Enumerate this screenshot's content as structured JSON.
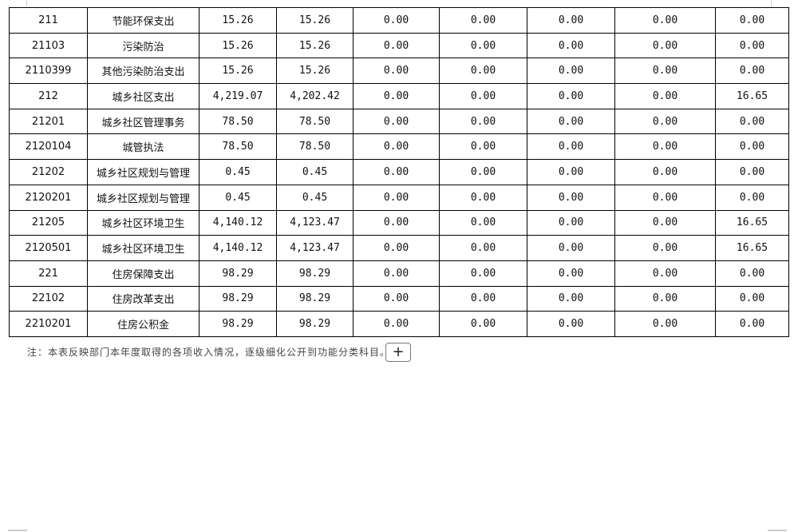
{
  "rows": [
    [
      "211",
      "节能环保支出",
      "15.26",
      "15.26",
      "0.00",
      "0.00",
      "0.00",
      "0.00",
      "0.00"
    ],
    [
      "21103",
      "污染防治",
      "15.26",
      "15.26",
      "0.00",
      "0.00",
      "0.00",
      "0.00",
      "0.00"
    ],
    [
      "2110399",
      "其他污染防治支出",
      "15.26",
      "15.26",
      "0.00",
      "0.00",
      "0.00",
      "0.00",
      "0.00"
    ],
    [
      "212",
      "城乡社区支出",
      "4,219.07",
      "4,202.42",
      "0.00",
      "0.00",
      "0.00",
      "0.00",
      "16.65"
    ],
    [
      "21201",
      "城乡社区管理事务",
      "78.50",
      "78.50",
      "0.00",
      "0.00",
      "0.00",
      "0.00",
      "0.00"
    ],
    [
      "2120104",
      "城管执法",
      "78.50",
      "78.50",
      "0.00",
      "0.00",
      "0.00",
      "0.00",
      "0.00"
    ],
    [
      "21202",
      "城乡社区规划与管理",
      "0.45",
      "0.45",
      "0.00",
      "0.00",
      "0.00",
      "0.00",
      "0.00"
    ],
    [
      "2120201",
      "城乡社区规划与管理",
      "0.45",
      "0.45",
      "0.00",
      "0.00",
      "0.00",
      "0.00",
      "0.00"
    ],
    [
      "21205",
      "城乡社区环境卫生",
      "4,140.12",
      "4,123.47",
      "0.00",
      "0.00",
      "0.00",
      "0.00",
      "16.65"
    ],
    [
      "2120501",
      "城乡社区环境卫生",
      "4,140.12",
      "4,123.47",
      "0.00",
      "0.00",
      "0.00",
      "0.00",
      "16.65"
    ],
    [
      "221",
      "住房保障支出",
      "98.29",
      "98.29",
      "0.00",
      "0.00",
      "0.00",
      "0.00",
      "0.00"
    ],
    [
      "22102",
      "住房改革支出",
      "98.29",
      "98.29",
      "0.00",
      "0.00",
      "0.00",
      "0.00",
      "0.00"
    ],
    [
      "2210201",
      "住房公积金",
      "98.29",
      "98.29",
      "0.00",
      "0.00",
      "0.00",
      "0.00",
      "0.00"
    ]
  ],
  "note": "注：本表反映部门本年度取得的各项收入情况，逐级细化公开到功能分类科目。",
  "add_button": "+"
}
